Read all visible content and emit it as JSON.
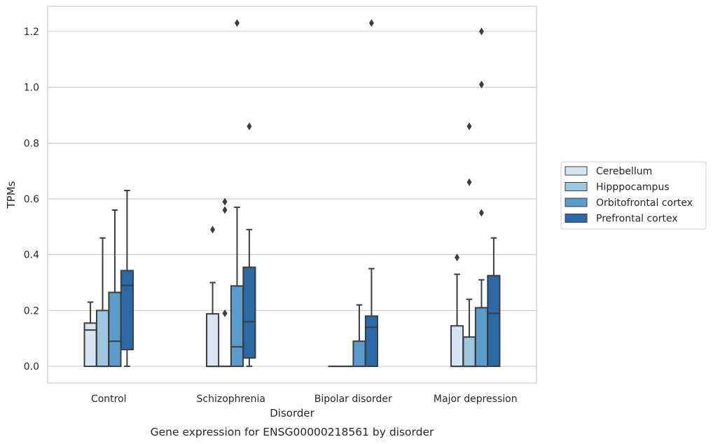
{
  "chart_data": {
    "type": "box",
    "xlabel": "Disorder",
    "ylabel": "TPMs",
    "caption": "Gene expression for ENSG00000218561 by disorder",
    "categories": [
      "Control",
      "Schizophrenia",
      "Bipolar disorder",
      "Major depression"
    ],
    "yticks": [
      "0.0",
      "0.2",
      "0.4",
      "0.6",
      "0.8",
      "1.0",
      "1.2"
    ],
    "ylim": [
      -0.06,
      1.29
    ],
    "grid": "horizontal",
    "legend_position": "right",
    "series": [
      {
        "name": "Cerebellum",
        "color": "#d6e5f3",
        "boxes": [
          {
            "q1": 0.0,
            "median": 0.13,
            "q3": 0.155,
            "whislo": 0.0,
            "whishi": 0.23,
            "fliers": []
          },
          {
            "q1": 0.0,
            "median": 0.0,
            "q3": 0.188,
            "whislo": 0.0,
            "whishi": 0.3,
            "fliers": [
              0.49
            ]
          },
          {
            "q1": 0.0,
            "median": 0.0,
            "q3": 0.0,
            "whislo": 0.0,
            "whishi": 0.0,
            "fliers": []
          },
          {
            "q1": 0.0,
            "median": 0.0,
            "q3": 0.145,
            "whislo": 0.0,
            "whishi": 0.33,
            "fliers": [
              0.39
            ]
          }
        ]
      },
      {
        "name": "Hipppocampus",
        "color": "#9dc8df",
        "boxes": [
          {
            "q1": 0.0,
            "median": 0.0,
            "q3": 0.2,
            "whislo": 0.0,
            "whishi": 0.46,
            "fliers": []
          },
          {
            "q1": 0.0,
            "median": 0.0,
            "q3": 0.0,
            "whislo": 0.0,
            "whishi": 0.0,
            "fliers": [
              0.19,
              0.56,
              0.59
            ]
          },
          {
            "q1": 0.0,
            "median": 0.0,
            "q3": 0.0,
            "whislo": 0.0,
            "whishi": 0.0,
            "fliers": []
          },
          {
            "q1": 0.0,
            "median": 0.0,
            "q3": 0.105,
            "whislo": 0.0,
            "whishi": 0.24,
            "fliers": [
              0.66,
              0.86
            ]
          }
        ]
      },
      {
        "name": "Orbitofrontal cortex",
        "color": "#5a9ccb",
        "boxes": [
          {
            "q1": 0.0,
            "median": 0.09,
            "q3": 0.265,
            "whislo": 0.0,
            "whishi": 0.56,
            "fliers": []
          },
          {
            "q1": 0.0,
            "median": 0.07,
            "q3": 0.288,
            "whislo": 0.0,
            "whishi": 0.57,
            "fliers": [
              1.23
            ]
          },
          {
            "q1": 0.0,
            "median": 0.0,
            "q3": 0.09,
            "whislo": 0.0,
            "whishi": 0.22,
            "fliers": []
          },
          {
            "q1": 0.0,
            "median": 0.0,
            "q3": 0.21,
            "whislo": 0.0,
            "whishi": 0.31,
            "fliers": [
              0.55,
              1.01,
              1.2
            ]
          }
        ]
      },
      {
        "name": "Prefrontal cortex",
        "color": "#2b6aa6",
        "boxes": [
          {
            "q1": 0.06,
            "median": 0.29,
            "q3": 0.343,
            "whislo": 0.0,
            "whishi": 0.63,
            "fliers": []
          },
          {
            "q1": 0.03,
            "median": 0.16,
            "q3": 0.355,
            "whislo": 0.0,
            "whishi": 0.49,
            "fliers": [
              0.86
            ]
          },
          {
            "q1": 0.0,
            "median": 0.14,
            "q3": 0.18,
            "whislo": 0.0,
            "whishi": 0.35,
            "fliers": [
              1.23
            ]
          },
          {
            "q1": 0.0,
            "median": 0.19,
            "q3": 0.325,
            "whislo": 0.0,
            "whishi": 0.46,
            "fliers": []
          }
        ]
      }
    ]
  }
}
